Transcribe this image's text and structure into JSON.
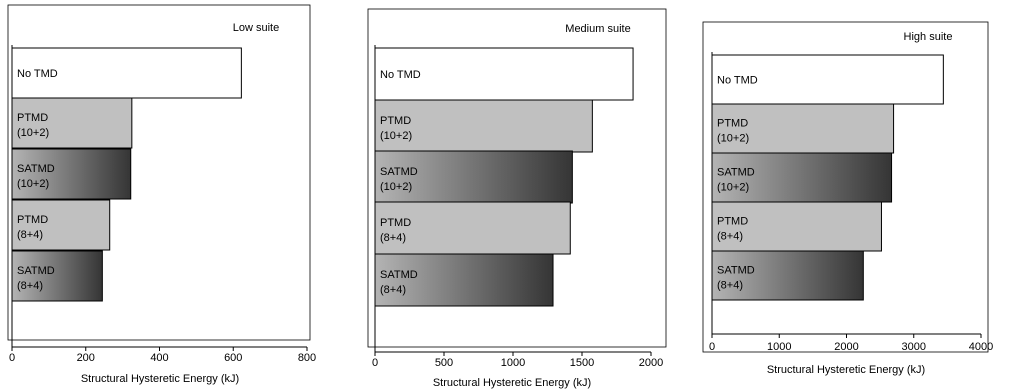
{
  "chart_data": [
    {
      "type": "bar",
      "title": "Low suite",
      "xlabel": "Structural Hysteretic Energy (kJ)",
      "xlim": [
        0,
        800
      ],
      "xticks": [
        0,
        200,
        400,
        600,
        800
      ],
      "categories": [
        {
          "line1": "No TMD",
          "line2": ""
        },
        {
          "line1": "PTMD",
          "line2": "(10+2)"
        },
        {
          "line1": "SATMD",
          "line2": "(10+2)"
        },
        {
          "line1": "PTMD",
          "line2": "(8+4)"
        },
        {
          "line1": "SATMD",
          "line2": " (8+4)"
        }
      ],
      "values": [
        622,
        325,
        322,
        265,
        245
      ],
      "styles": [
        "white",
        "gray",
        "gradient",
        "gray",
        "gradient"
      ]
    },
    {
      "type": "bar",
      "title": "Medium suite",
      "xlabel": "Structural Hysteretic Energy (kJ)",
      "xlim": [
        0,
        2000
      ],
      "xticks": [
        0,
        500,
        1000,
        1500,
        2000
      ],
      "categories": [
        {
          "line1": "No TMD",
          "line2": ""
        },
        {
          "line1": "PTMD",
          "line2": "(10+2)"
        },
        {
          "line1": "SATMD",
          "line2": "(10+2)"
        },
        {
          "line1": "PTMD",
          "line2": "(8+4)"
        },
        {
          "line1": "SATMD",
          "line2": "(8+4)"
        }
      ],
      "values": [
        1870,
        1575,
        1430,
        1415,
        1290
      ],
      "styles": [
        "white",
        "gray",
        "gradient",
        "gray",
        "gradient"
      ]
    },
    {
      "type": "bar",
      "title": "High suite",
      "xlabel": "Structural Hysteretic Energy (kJ)",
      "xlim": [
        0,
        4000
      ],
      "xticks": [
        0,
        1000,
        2000,
        3000,
        4000
      ],
      "categories": [
        {
          "line1": "No TMD",
          "line2": ""
        },
        {
          "line1": "PTMD",
          "line2": "(10+2)"
        },
        {
          "line1": "SATMD",
          "line2": "(10+2)"
        },
        {
          "line1": "PTMD",
          "line2": "(8+4)"
        },
        {
          "line1": "SATMD",
          "line2": "(8+4)"
        }
      ],
      "values": [
        3440,
        2700,
        2670,
        2520,
        2250
      ],
      "styles": [
        "white",
        "gray",
        "gradient",
        "gray",
        "gradient"
      ]
    }
  ],
  "colors": {
    "gray_bar": "#c0c0c0",
    "gradient_light": "#b4b4b4",
    "gradient_dark": "#353535",
    "white_bar": "#ffffff",
    "outline": "#000000",
    "frame": "#000000"
  }
}
